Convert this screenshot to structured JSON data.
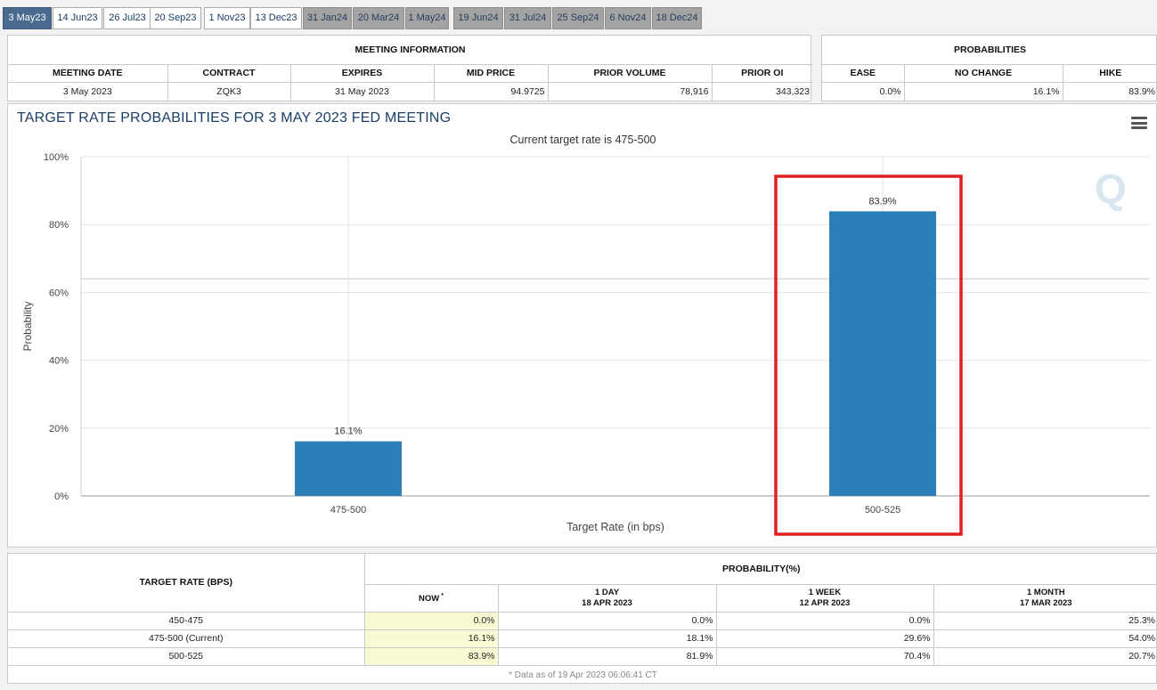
{
  "tabs": [
    {
      "label": "3 May23",
      "state": "active"
    },
    {
      "label": "14 Jun23",
      "state": "normal"
    },
    {
      "label": "26 Jul23",
      "state": "normal"
    },
    {
      "label": "20 Sep23",
      "state": "normal"
    },
    {
      "label": "1 Nov23",
      "state": "normal"
    },
    {
      "label": "13 Dec23",
      "state": "normal"
    },
    {
      "label": "31 Jan24",
      "state": "grey"
    },
    {
      "label": "20 Mar24",
      "state": "grey"
    },
    {
      "label": "1 May24",
      "state": "grey"
    },
    {
      "label": "19 Jun24",
      "state": "grey"
    },
    {
      "label": "31 Jul24",
      "state": "grey"
    },
    {
      "label": "25 Sep24",
      "state": "grey"
    },
    {
      "label": "6 Nov24",
      "state": "grey"
    },
    {
      "label": "18 Dec24",
      "state": "grey"
    }
  ],
  "meeting_info": {
    "title": "MEETING INFORMATION",
    "headers": [
      "MEETING DATE",
      "CONTRACT",
      "EXPIRES",
      "MID PRICE",
      "PRIOR VOLUME",
      "PRIOR OI"
    ],
    "values": [
      "3 May 2023",
      "ZQK3",
      "31 May 2023",
      "94.9725",
      "78,916",
      "343,323"
    ]
  },
  "probabilities": {
    "title": "PROBABILITIES",
    "headers": [
      "EASE",
      "NO CHANGE",
      "HIKE"
    ],
    "values": [
      "0.0%",
      "16.1%",
      "83.9%"
    ]
  },
  "chart": {
    "title": "TARGET RATE PROBABILITIES FOR 3 MAY 2023 FED MEETING",
    "subtitle": "Current target rate is 475-500",
    "logo": "Q"
  },
  "chart_data": {
    "type": "bar",
    "title": "TARGET RATE PROBABILITIES FOR 3 MAY 2023 FED MEETING",
    "subtitle": "Current target rate is 475-500",
    "categories": [
      "475-500",
      "500-525"
    ],
    "values": [
      16.1,
      83.9
    ],
    "data_labels": [
      "16.1%",
      "83.9%"
    ],
    "xlabel": "Target Rate (in bps)",
    "ylabel": "Probability",
    "ylim": [
      0,
      100
    ],
    "yticks": [
      "0%",
      "20%",
      "40%",
      "60%",
      "80%",
      "100%"
    ],
    "ytick_values": [
      0,
      20,
      40,
      60,
      80,
      100
    ],
    "reference_line": 64,
    "grid": true,
    "bar_color": "#2a7fb8",
    "highlight_category": "500-525",
    "highlight_color": "#e02020"
  },
  "bottom_table": {
    "row_header": "TARGET RATE (BPS)",
    "group_header": "PROBABILITY(%)",
    "columns": [
      {
        "line1": "NOW",
        "mark": "*",
        "line2": ""
      },
      {
        "line1": "1 DAY",
        "line2": "18 APR 2023"
      },
      {
        "line1": "1 WEEK",
        "line2": "12 APR 2023"
      },
      {
        "line1": "1 MONTH",
        "line2": "17 MAR 2023"
      }
    ],
    "rows": [
      {
        "rate": "450-475",
        "values": [
          "0.0%",
          "0.0%",
          "0.0%",
          "25.3%"
        ]
      },
      {
        "rate": "475-500 (Current)",
        "values": [
          "16.1%",
          "18.1%",
          "29.6%",
          "54.0%"
        ]
      },
      {
        "rate": "500-525",
        "values": [
          "83.9%",
          "81.9%",
          "70.4%",
          "20.7%"
        ]
      }
    ],
    "footnote": "* Data as of 19 Apr 2023 06:06:41 CT"
  }
}
